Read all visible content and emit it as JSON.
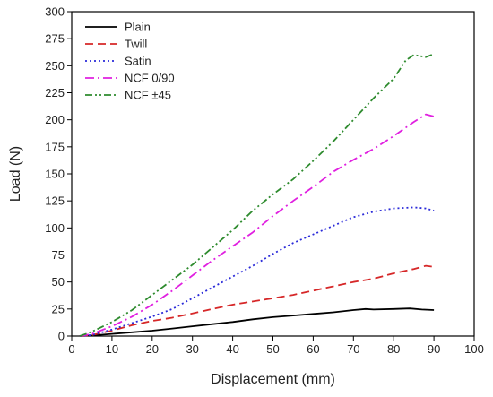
{
  "chart_data": {
    "type": "line",
    "title": "",
    "xlabel": "Displacement (mm)",
    "ylabel": "Load (N)",
    "xlim": [
      0,
      100
    ],
    "ylim": [
      0,
      300
    ],
    "x_ticks": [
      0,
      10,
      20,
      30,
      40,
      50,
      60,
      70,
      80,
      90,
      100
    ],
    "y_ticks": [
      0,
      25,
      50,
      75,
      100,
      125,
      150,
      175,
      200,
      225,
      250,
      275,
      300
    ],
    "grid": false,
    "legend_position": "top-left",
    "series": [
      {
        "name": "Plain",
        "color": "#000000",
        "dash": "solid",
        "x": [
          2,
          5,
          10,
          15,
          20,
          25,
          30,
          35,
          40,
          45,
          50,
          55,
          60,
          65,
          70,
          73,
          75,
          80,
          84,
          87,
          90
        ],
        "y": [
          0,
          0.5,
          2,
          3.5,
          5,
          7,
          9,
          11,
          13,
          15.5,
          17.5,
          19,
          20.5,
          22,
          24,
          25,
          24.5,
          25,
          25.5,
          24.5,
          24
        ]
      },
      {
        "name": "Twill",
        "color": "#d62728",
        "dash": "dashed",
        "x": [
          2,
          5,
          10,
          15,
          20,
          25,
          30,
          35,
          40,
          45,
          50,
          55,
          60,
          65,
          70,
          75,
          80,
          85,
          88,
          90
        ],
        "y": [
          0,
          1,
          5,
          10,
          14,
          17,
          21,
          25,
          29,
          32,
          35,
          38,
          42,
          46,
          50,
          53,
          58,
          62,
          65,
          64
        ]
      },
      {
        "name": "Satin",
        "color": "#2b2bd9",
        "dash": "dotted",
        "x": [
          2,
          5,
          10,
          15,
          20,
          25,
          30,
          35,
          40,
          45,
          50,
          55,
          60,
          65,
          70,
          75,
          80,
          85,
          88,
          90
        ],
        "y": [
          0,
          1,
          6,
          12,
          18,
          25,
          35,
          45,
          55,
          65,
          76,
          86,
          94,
          102,
          110,
          115,
          118,
          119,
          118,
          116
        ]
      },
      {
        "name": "NCF 0/90",
        "color": "#e020e0",
        "dash": "dashdot",
        "x": [
          2,
          5,
          10,
          15,
          20,
          25,
          30,
          35,
          40,
          45,
          50,
          55,
          60,
          65,
          70,
          75,
          80,
          85,
          88,
          90
        ],
        "y": [
          0,
          2,
          9,
          18,
          29,
          42,
          56,
          70,
          83,
          96,
          111,
          125,
          138,
          152,
          163,
          173,
          185,
          198,
          205,
          203
        ]
      },
      {
        "name": "NCF ±45",
        "color": "#2e8b2e",
        "dash": "dashdotdot",
        "x": [
          2,
          5,
          10,
          15,
          20,
          25,
          30,
          35,
          40,
          45,
          50,
          55,
          60,
          65,
          70,
          75,
          80,
          83,
          85,
          88,
          90
        ],
        "y": [
          0,
          4,
          13,
          24,
          38,
          52,
          66,
          82,
          98,
          116,
          131,
          145,
          162,
          180,
          200,
          220,
          238,
          255,
          260,
          258,
          261
        ]
      }
    ]
  }
}
